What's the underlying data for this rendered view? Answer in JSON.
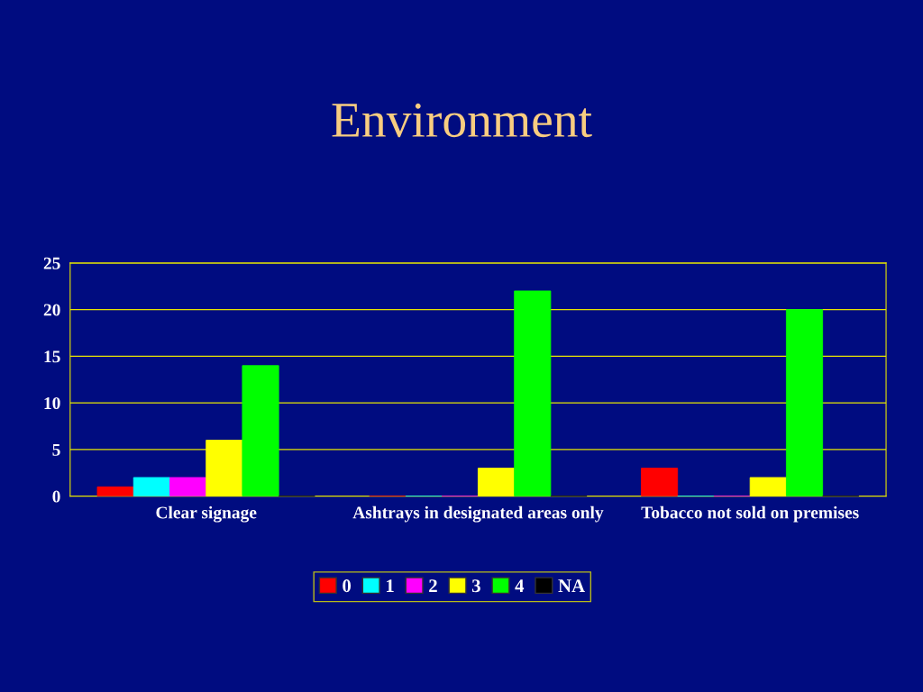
{
  "chart_data": {
    "type": "bar",
    "title": "Environment",
    "categories": [
      "Clear signage",
      "Ashtrays in designated areas only",
      "Tobacco not sold on premises"
    ],
    "series": [
      {
        "name": "0",
        "color": "#ff0000",
        "values": [
          1,
          0,
          3
        ]
      },
      {
        "name": "1",
        "color": "#00ffff",
        "values": [
          2,
          0,
          0
        ]
      },
      {
        "name": "2",
        "color": "#ff00ff",
        "values": [
          2,
          0,
          0
        ]
      },
      {
        "name": "3",
        "color": "#ffff00",
        "values": [
          6,
          3,
          2
        ]
      },
      {
        "name": "4",
        "color": "#00ff00",
        "values": [
          14,
          22,
          20
        ]
      },
      {
        "name": "NA",
        "color": "#000000",
        "values": [
          0,
          0,
          0
        ]
      }
    ],
    "ylim": [
      0,
      25
    ],
    "yticks": [
      0,
      5,
      10,
      15,
      20,
      25
    ],
    "grid": "y",
    "legend": "bottom"
  }
}
